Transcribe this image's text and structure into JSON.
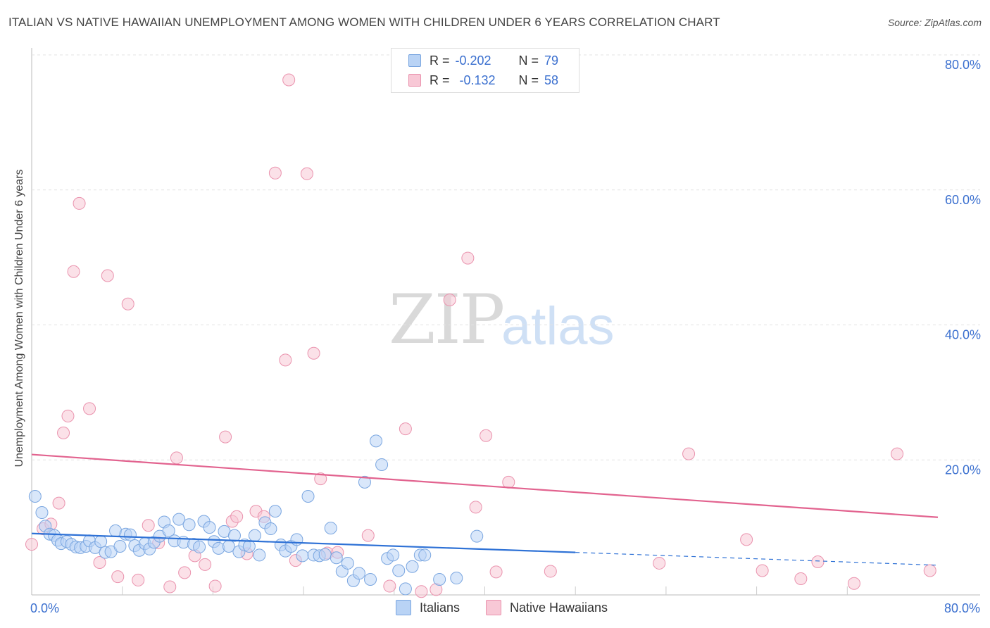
{
  "title": "ITALIAN VS NATIVE HAWAIIAN UNEMPLOYMENT AMONG WOMEN WITH CHILDREN UNDER 6 YEARS CORRELATION CHART",
  "source": "Source: ZipAtlas.com",
  "watermark": {
    "zip": "ZIP",
    "atlas": "atlas"
  },
  "legend": {
    "r_label": "R =",
    "n_label": "N =",
    "italians": {
      "r": "-0.202",
      "n": "79"
    },
    "hawaiians": {
      "r": "-0.132",
      "n": "58"
    }
  },
  "bottom_legend": {
    "italians": "Italians",
    "hawaiians": "Native Hawaiians"
  },
  "chart_data": {
    "type": "scatter",
    "title": "ITALIAN VS NATIVE HAWAIIAN UNEMPLOYMENT AMONG WOMEN WITH CHILDREN UNDER 6 YEARS CORRELATION CHART",
    "xlabel": "",
    "ylabel": "Unemployment Among Women with Children Under 6 years",
    "xlim": [
      0,
      80
    ],
    "ylim": [
      0,
      80
    ],
    "x_tick_labels": [
      "0.0%",
      "80.0%"
    ],
    "y_ticks": [
      20,
      40,
      60,
      80
    ],
    "y_tick_labels": [
      "20.0%",
      "40.0%",
      "60.0%",
      "80.0%"
    ],
    "colors": {
      "italians": "#7aa6e0",
      "italians_fill": "#b9d3f5",
      "italians_line": "#2f72d6",
      "hawaiians": "#ea93ae",
      "hawaiians_fill": "#f8c8d6",
      "hawaiians_line": "#e2638f"
    },
    "series": [
      {
        "name": "Italians",
        "r": -0.202,
        "n": 79,
        "trend": {
          "x0": 0,
          "y0": 9.1,
          "x1": 48,
          "y1": 6.3,
          "dash_x1": 80,
          "dash_y1": 4.4
        },
        "points": [
          [
            0.3,
            14.6
          ],
          [
            0.9,
            12.2
          ],
          [
            1.2,
            10.2
          ],
          [
            1.6,
            9.0
          ],
          [
            2.0,
            8.8
          ],
          [
            2.3,
            8.1
          ],
          [
            2.6,
            7.6
          ],
          [
            3.1,
            7.9
          ],
          [
            3.5,
            7.5
          ],
          [
            3.9,
            7.1
          ],
          [
            4.3,
            7.0
          ],
          [
            4.8,
            7.2
          ],
          [
            5.1,
            8.0
          ],
          [
            5.6,
            7.0
          ],
          [
            6.1,
            7.9
          ],
          [
            6.5,
            6.3
          ],
          [
            7.0,
            6.4
          ],
          [
            7.4,
            9.5
          ],
          [
            7.8,
            7.2
          ],
          [
            8.3,
            9.0
          ],
          [
            8.7,
            8.9
          ],
          [
            9.1,
            7.3
          ],
          [
            9.5,
            6.6
          ],
          [
            10.0,
            7.6
          ],
          [
            10.4,
            6.8
          ],
          [
            10.8,
            7.8
          ],
          [
            11.3,
            8.7
          ],
          [
            11.7,
            10.8
          ],
          [
            12.1,
            9.5
          ],
          [
            12.6,
            8.0
          ],
          [
            13.0,
            11.2
          ],
          [
            13.4,
            7.8
          ],
          [
            13.9,
            10.4
          ],
          [
            14.3,
            7.5
          ],
          [
            14.8,
            7.1
          ],
          [
            15.2,
            10.9
          ],
          [
            15.7,
            10.0
          ],
          [
            16.1,
            7.9
          ],
          [
            16.5,
            6.9
          ],
          [
            17.0,
            9.4
          ],
          [
            17.4,
            7.2
          ],
          [
            17.9,
            8.8
          ],
          [
            18.3,
            6.4
          ],
          [
            18.8,
            7.4
          ],
          [
            19.2,
            7.2
          ],
          [
            19.7,
            8.8
          ],
          [
            20.1,
            5.9
          ],
          [
            20.6,
            10.7
          ],
          [
            21.1,
            9.8
          ],
          [
            21.5,
            12.4
          ],
          [
            22.0,
            7.4
          ],
          [
            22.4,
            6.5
          ],
          [
            22.9,
            7.2
          ],
          [
            23.4,
            8.2
          ],
          [
            23.9,
            5.8
          ],
          [
            24.4,
            14.6
          ],
          [
            24.9,
            5.9
          ],
          [
            25.4,
            5.8
          ],
          [
            25.9,
            6.0
          ],
          [
            26.4,
            9.9
          ],
          [
            26.9,
            5.5
          ],
          [
            27.4,
            3.5
          ],
          [
            27.9,
            4.7
          ],
          [
            28.4,
            2.1
          ],
          [
            28.9,
            3.2
          ],
          [
            29.4,
            16.7
          ],
          [
            29.9,
            2.3
          ],
          [
            30.4,
            22.8
          ],
          [
            30.9,
            19.3
          ],
          [
            31.4,
            5.4
          ],
          [
            31.9,
            5.9
          ],
          [
            32.4,
            3.6
          ],
          [
            33.0,
            0.9
          ],
          [
            33.6,
            4.2
          ],
          [
            34.3,
            5.9
          ],
          [
            34.7,
            5.9
          ],
          [
            36.0,
            2.3
          ],
          [
            37.5,
            2.5
          ],
          [
            39.3,
            8.7
          ]
        ]
      },
      {
        "name": "Native Hawaiians",
        "r": -0.132,
        "n": 58,
        "trend": {
          "x0": 0,
          "y0": 20.8,
          "x1": 80,
          "y1": 11.5
        },
        "points": [
          [
            0.0,
            7.5
          ],
          [
            1.0,
            9.8
          ],
          [
            1.7,
            10.5
          ],
          [
            2.4,
            13.6
          ],
          [
            2.8,
            24.0
          ],
          [
            3.2,
            26.5
          ],
          [
            3.7,
            47.9
          ],
          [
            4.2,
            58.0
          ],
          [
            5.1,
            27.6
          ],
          [
            6.0,
            4.8
          ],
          [
            6.7,
            47.3
          ],
          [
            7.6,
            2.7
          ],
          [
            8.5,
            43.1
          ],
          [
            9.4,
            2.2
          ],
          [
            10.3,
            10.3
          ],
          [
            11.2,
            7.7
          ],
          [
            12.2,
            1.2
          ],
          [
            12.8,
            20.3
          ],
          [
            13.5,
            3.3
          ],
          [
            14.4,
            5.8
          ],
          [
            15.3,
            4.5
          ],
          [
            16.2,
            1.3
          ],
          [
            17.1,
            23.4
          ],
          [
            17.7,
            10.9
          ],
          [
            18.1,
            11.6
          ],
          [
            19.0,
            6.1
          ],
          [
            19.8,
            12.4
          ],
          [
            20.5,
            11.6
          ],
          [
            21.5,
            62.5
          ],
          [
            22.4,
            34.8
          ],
          [
            22.7,
            76.3
          ],
          [
            23.3,
            5.1
          ],
          [
            24.3,
            62.4
          ],
          [
            24.9,
            35.8
          ],
          [
            25.5,
            17.2
          ],
          [
            26.1,
            6.2
          ],
          [
            27.0,
            6.3
          ],
          [
            29.7,
            8.8
          ],
          [
            31.6,
            1.3
          ],
          [
            33.0,
            24.6
          ],
          [
            34.4,
            0.5
          ],
          [
            35.7,
            0.8
          ],
          [
            36.9,
            43.7
          ],
          [
            38.5,
            49.9
          ],
          [
            39.2,
            13.0
          ],
          [
            40.1,
            23.6
          ],
          [
            41.0,
            3.4
          ],
          [
            42.1,
            16.7
          ],
          [
            45.8,
            3.5
          ],
          [
            55.4,
            4.7
          ],
          [
            58.0,
            20.9
          ],
          [
            63.1,
            8.2
          ],
          [
            64.5,
            3.6
          ],
          [
            67.9,
            2.4
          ],
          [
            69.4,
            4.9
          ],
          [
            72.6,
            1.7
          ],
          [
            76.4,
            20.9
          ],
          [
            79.3,
            3.6
          ]
        ]
      }
    ]
  }
}
